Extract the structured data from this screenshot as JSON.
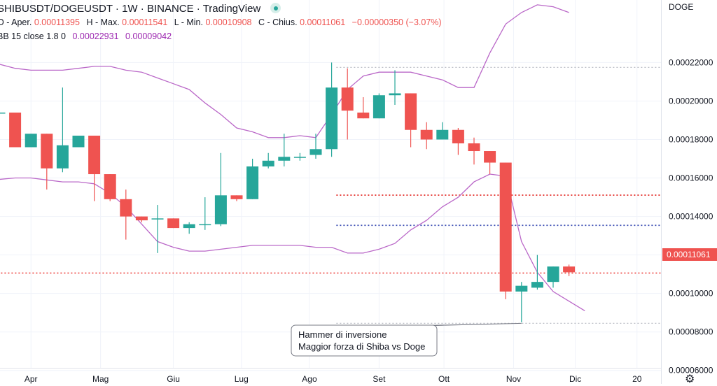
{
  "header": {
    "symbol": "SHIBUSDT/DOGEUSDT",
    "interval": "1W",
    "exchange": "BINANCE",
    "platform": "TradingView",
    "sep": "·",
    "open_label": "O - Aper.",
    "open": "0.00011395",
    "high_label": "H - Max.",
    "high": "0.00011541",
    "low_label": "L - Min.",
    "low": "0.00010908",
    "close_label": "C - Chius.",
    "close": "0.00011061",
    "change": "−0.00000350 (−3.07%)",
    "bb_label": "BB",
    "bb_params": "15 close 1.8 0",
    "bb_upper": "0.00022931",
    "bb_lower": "0.00009042"
  },
  "price_axis_label": "DOGE",
  "last_price_tag": "0.00011061",
  "annotation": {
    "line1": "Hammer di inversione",
    "line2": "Maggior forza di Shiba vs Doge"
  },
  "colors": {
    "up": "#26a69a",
    "down": "#ef5350",
    "bands": "#ba68c8"
  },
  "chart_data": {
    "type": "candlestick",
    "y_ticks": [
      "0.00006000",
      "0.00008000",
      "0.00010000",
      "0.00012000",
      "0.00014000",
      "0.00016000",
      "0.00018000",
      "0.00020000",
      "0.00022000"
    ],
    "y_tick_values": [
      6e-05,
      8e-05,
      0.0001,
      0.00012,
      0.00014,
      0.00016,
      0.00018,
      0.0002,
      0.00022
    ],
    "ylim": [
      5.3e-05,
      0.0002525
    ],
    "x_ticks": [
      {
        "label": "Apr",
        "index": 2
      },
      {
        "label": "Mag",
        "index": 6.4
      },
      {
        "label": "Giu",
        "index": 11
      },
      {
        "label": "Lug",
        "index": 15.3
      },
      {
        "label": "Ago",
        "index": 19.6
      },
      {
        "label": "Set",
        "index": 24
      },
      {
        "label": "Ott",
        "index": 28.1
      },
      {
        "label": "Nov",
        "index": 32.5
      },
      {
        "label": "Dic",
        "index": 36.4
      },
      {
        "label": "20",
        "index": 40.3
      }
    ],
    "candles": [
      {
        "o": 0.000194,
        "h": 0.000198,
        "l": 0.000185,
        "c": 0.000194
      },
      {
        "o": 0.000194,
        "h": 0.000194,
        "l": 0.000176,
        "c": 0.000176
      },
      {
        "o": 0.000176,
        "h": 0.000183,
        "l": 0.000176,
        "c": 0.000183
      },
      {
        "o": 0.000183,
        "h": 0.000183,
        "l": 0.000154,
        "c": 0.000165
      },
      {
        "o": 0.000165,
        "h": 0.000207,
        "l": 0.000163,
        "c": 0.000177
      },
      {
        "o": 0.000176,
        "h": 0.000182,
        "l": 0.000176,
        "c": 0.000182
      },
      {
        "o": 0.000182,
        "h": 0.000182,
        "l": 0.000148,
        "c": 0.000162
      },
      {
        "o": 0.000162,
        "h": 0.000162,
        "l": 0.000148,
        "c": 0.000149
      },
      {
        "o": 0.000149,
        "h": 0.000154,
        "l": 0.000128,
        "c": 0.00014
      },
      {
        "o": 0.00014,
        "h": 0.00014,
        "l": 0.000137,
        "c": 0.000138
      },
      {
        "o": 0.000139,
        "h": 0.000146,
        "l": 0.000121,
        "c": 0.000139
      },
      {
        "o": 0.000139,
        "h": 0.000139,
        "l": 0.000134,
        "c": 0.000134
      },
      {
        "o": 0.000134,
        "h": 0.000137,
        "l": 0.000131,
        "c": 0.000136
      },
      {
        "o": 0.000136,
        "h": 0.00015,
        "l": 0.000133,
        "c": 0.000136
      },
      {
        "o": 0.000136,
        "h": 0.000173,
        "l": 0.000135,
        "c": 0.000151
      },
      {
        "o": 0.000151,
        "h": 0.000151,
        "l": 0.000148,
        "c": 0.000149
      },
      {
        "o": 0.000149,
        "h": 0.00017,
        "l": 0.000149,
        "c": 0.000166
      },
      {
        "o": 0.000166,
        "h": 0.000173,
        "l": 0.000165,
        "c": 0.000169
      },
      {
        "o": 0.000169,
        "h": 0.000183,
        "l": 0.000166,
        "c": 0.000171
      },
      {
        "o": 0.000171,
        "h": 0.000173,
        "l": 0.000169,
        "c": 0.000171
      },
      {
        "o": 0.000172,
        "h": 0.000183,
        "l": 0.00017,
        "c": 0.000175
      },
      {
        "o": 0.000175,
        "h": 0.00022,
        "l": 0.000171,
        "c": 0.000207
      },
      {
        "o": 0.000207,
        "h": 0.000217,
        "l": 0.00018,
        "c": 0.000195
      },
      {
        "o": 0.000194,
        "h": 0.000202,
        "l": 0.000191,
        "c": 0.000191
      },
      {
        "o": 0.000191,
        "h": 0.000204,
        "l": 0.000191,
        "c": 0.000203
      },
      {
        "o": 0.000203,
        "h": 0.000216,
        "l": 0.000198,
        "c": 0.000204
      },
      {
        "o": 0.000204,
        "h": 0.000204,
        "l": 0.000176,
        "c": 0.000185
      },
      {
        "o": 0.000185,
        "h": 0.000189,
        "l": 0.000175,
        "c": 0.00018
      },
      {
        "o": 0.00018,
        "h": 0.000189,
        "l": 0.00018,
        "c": 0.000185
      },
      {
        "o": 0.000185,
        "h": 0.000186,
        "l": 0.000172,
        "c": 0.000178
      },
      {
        "o": 0.000178,
        "h": 0.000181,
        "l": 0.000167,
        "c": 0.000174
      },
      {
        "o": 0.000174,
        "h": 0.000174,
        "l": 0.000162,
        "c": 0.000168
      },
      {
        "o": 0.000168,
        "h": 0.000168,
        "l": 9.7e-05,
        "c": 0.000101
      },
      {
        "o": 0.000101,
        "h": 0.000106,
        "l": 8.5e-05,
        "c": 0.000104
      },
      {
        "o": 0.000103,
        "h": 0.00012,
        "l": 0.000102,
        "c": 0.000106
      },
      {
        "o": 0.000106,
        "h": 0.000114,
        "l": 0.000103,
        "c": 0.000114
      },
      {
        "o": 0.000114,
        "h": 0.000115,
        "l": 0.000109,
        "c": 0.000111
      }
    ],
    "bb_upper": [
      [
        -0.4,
        0.00022
      ],
      [
        1,
        0.000217
      ],
      [
        2,
        0.000216
      ],
      [
        3,
        0.000216
      ],
      [
        4,
        0.000216
      ],
      [
        5,
        0.000217
      ],
      [
        6,
        0.000218
      ],
      [
        7,
        0.000218
      ],
      [
        8,
        0.000216
      ],
      [
        9,
        0.000215
      ],
      [
        10,
        0.000212
      ],
      [
        11,
        0.000209
      ],
      [
        12,
        0.000206
      ],
      [
        13,
        0.000199
      ],
      [
        14,
        0.000193
      ],
      [
        15,
        0.000186
      ],
      [
        16,
        0.000184
      ],
      [
        17,
        0.000181
      ],
      [
        18,
        0.000181
      ],
      [
        19,
        0.000182
      ],
      [
        20,
        0.000181
      ],
      [
        21,
        0.000193
      ],
      [
        22,
        0.000206
      ],
      [
        23,
        0.000213
      ],
      [
        24,
        0.000215
      ],
      [
        25,
        0.000215
      ],
      [
        26,
        0.000215
      ],
      [
        27,
        0.000213
      ],
      [
        28,
        0.000211
      ],
      [
        29,
        0.000207
      ],
      [
        30,
        0.000207
      ],
      [
        31,
        0.000225
      ],
      [
        32,
        0.00024
      ],
      [
        33,
        0.000246
      ],
      [
        34,
        0.00025
      ],
      [
        35,
        0.000249
      ],
      [
        36,
        0.000246
      ]
    ],
    "bb_lower": [
      [
        -0.4,
        0.000159
      ],
      [
        1,
        0.00016
      ],
      [
        2,
        0.00016
      ],
      [
        3,
        0.000159
      ],
      [
        4,
        0.000158
      ],
      [
        5,
        0.000158
      ],
      [
        6,
        0.000157
      ],
      [
        7,
        0.000152
      ],
      [
        8,
        0.000145
      ],
      [
        9,
        0.000136
      ],
      [
        10,
        0.000127
      ],
      [
        11,
        0.000124
      ],
      [
        12,
        0.000122
      ],
      [
        13,
        0.000122
      ],
      [
        14,
        0.000123
      ],
      [
        15,
        0.000124
      ],
      [
        16,
        0.000125
      ],
      [
        17,
        0.000125
      ],
      [
        18,
        0.000125
      ],
      [
        19,
        0.000125
      ],
      [
        20,
        0.000124
      ],
      [
        21,
        0.000124
      ],
      [
        22,
        0.000121
      ],
      [
        23,
        0.000121
      ],
      [
        24,
        0.000123
      ],
      [
        25,
        0.000126
      ],
      [
        26,
        0.000133
      ],
      [
        27,
        0.000138
      ],
      [
        28,
        0.000145
      ],
      [
        29,
        0.00015
      ],
      [
        30,
        0.000158
      ],
      [
        31,
        0.000162
      ],
      [
        32,
        0.000161
      ],
      [
        33,
        0.000127
      ],
      [
        34,
        0.000111
      ],
      [
        35,
        0.000101
      ],
      [
        36,
        9.6e-05
      ],
      [
        37,
        9.1e-05
      ]
    ],
    "horizontal_lines": [
      {
        "value": 0.0002175,
        "color": "#b2b5be",
        "style": "dotted",
        "from": 21.3
      },
      {
        "value": 0.0001511,
        "color": "#e53935",
        "style": "dotted",
        "from": 21.3
      },
      {
        "value": 0.0001354,
        "color": "#3f51b5",
        "style": "dotted",
        "from": 21.3
      },
      {
        "value": 8.45e-05,
        "color": "#b2b5be",
        "style": "dotted",
        "from": 21.3
      },
      {
        "value": 0.00011061,
        "color": "#ef5350",
        "style": "dotted",
        "from": -1
      }
    ],
    "annotation_anchor": {
      "index": 33,
      "value": 8.45e-05
    }
  }
}
